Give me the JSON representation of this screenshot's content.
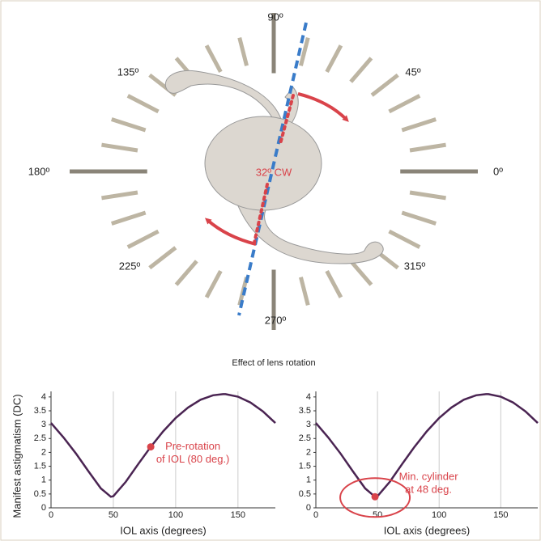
{
  "diagram": {
    "angle_labels": [
      "0º",
      "45º",
      "90º",
      "135º",
      "180º",
      "225º",
      "270º",
      "315º"
    ],
    "center_label": "32º CW"
  },
  "figure_title": "Effect of lens rotation",
  "chart_data": [
    {
      "type": "line",
      "ylabel": "Manifest astigmatism (DC)",
      "xlabel": "IOL axis (degrees)",
      "color": "#4a2452",
      "x": [
        0,
        10,
        20,
        30,
        40,
        48,
        50,
        60,
        70,
        80,
        90,
        100,
        110,
        120,
        130,
        138,
        140,
        150,
        160,
        170,
        180
      ],
      "values": [
        3.06,
        2.54,
        1.96,
        1.32,
        0.7,
        0.4,
        0.42,
        0.94,
        1.58,
        2.2,
        2.76,
        3.24,
        3.62,
        3.9,
        4.06,
        4.1,
        4.1,
        4.01,
        3.8,
        3.48,
        3.06
      ],
      "xlim": [
        0,
        180
      ],
      "ylim": [
        0,
        4.2
      ],
      "xticks": [
        0,
        50,
        100,
        150
      ],
      "yticks": [
        0,
        0.5,
        1,
        1.5,
        2,
        2.5,
        3,
        3.5,
        4
      ],
      "marker": {
        "x": 80,
        "y": 2.2,
        "color": "#d9434a"
      },
      "annotation": [
        "Pre-rotation",
        "of IOL (80 deg.)"
      ]
    },
    {
      "type": "line",
      "xlabel": "IOL axis (degrees)",
      "color": "#4a2452",
      "x": [
        0,
        10,
        20,
        30,
        40,
        48,
        50,
        60,
        70,
        80,
        90,
        100,
        110,
        120,
        130,
        138,
        140,
        150,
        160,
        170,
        180
      ],
      "values": [
        3.06,
        2.54,
        1.96,
        1.32,
        0.7,
        0.4,
        0.42,
        0.94,
        1.58,
        2.2,
        2.76,
        3.24,
        3.62,
        3.9,
        4.06,
        4.1,
        4.1,
        4.01,
        3.8,
        3.48,
        3.06
      ],
      "xlim": [
        0,
        180
      ],
      "ylim": [
        0,
        4.2
      ],
      "xticks": [
        0,
        50,
        100,
        150
      ],
      "yticks": [
        0,
        0.5,
        1,
        1.5,
        2,
        2.5,
        3,
        3.5,
        4
      ],
      "marker": {
        "x": 48,
        "y": 0.4,
        "color": "#d9434a"
      },
      "annotation": [
        "Min. cylinder",
        "at 48 deg."
      ]
    }
  ]
}
